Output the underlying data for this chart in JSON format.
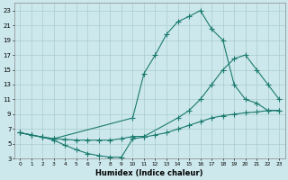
{
  "xlabel": "Humidex (Indice chaleur)",
  "bg_color": "#cce8ec",
  "grid_color": "#aacccc",
  "line_color": "#1a7a6e",
  "xlim": [
    -0.5,
    23.5
  ],
  "ylim": [
    3,
    24
  ],
  "xticks": [
    0,
    1,
    2,
    3,
    4,
    5,
    6,
    7,
    8,
    9,
    10,
    11,
    12,
    13,
    14,
    15,
    16,
    17,
    18,
    19,
    20,
    21,
    22,
    23
  ],
  "yticks": [
    3,
    5,
    7,
    9,
    11,
    13,
    15,
    17,
    19,
    21,
    23
  ],
  "line1_x": [
    0,
    1,
    2,
    3,
    10,
    11,
    12,
    13,
    14,
    15,
    16,
    17,
    18,
    19,
    20,
    21,
    22,
    23
  ],
  "line1_y": [
    6.5,
    6.2,
    5.9,
    5.7,
    8.5,
    14.5,
    17.0,
    19.8,
    21.5,
    22.2,
    23.0,
    20.5,
    19.0,
    13.0,
    11.0,
    10.5,
    9.5,
    9.5
  ],
  "line2_x": [
    0,
    1,
    2,
    3,
    4,
    5,
    6,
    7,
    8,
    9,
    10,
    11,
    14,
    15,
    16,
    17,
    18,
    19,
    20,
    21,
    22,
    23
  ],
  "line2_y": [
    6.5,
    6.2,
    5.9,
    5.7,
    5.6,
    5.5,
    5.5,
    5.5,
    5.5,
    5.7,
    6.0,
    6.0,
    8.5,
    9.5,
    11.0,
    13.0,
    15.0,
    16.5,
    17.0,
    15.0,
    13.0,
    11.0
  ],
  "line3_x": [
    0,
    1,
    2,
    3,
    4,
    5,
    6,
    7,
    8,
    9,
    10,
    11,
    12,
    13,
    14,
    15,
    16,
    17,
    18,
    19,
    20,
    21,
    22,
    23
  ],
  "line3_y": [
    6.5,
    6.2,
    5.9,
    5.5,
    4.8,
    4.2,
    3.7,
    3.4,
    3.2,
    3.2,
    5.7,
    5.9,
    6.2,
    6.5,
    7.0,
    7.5,
    8.0,
    8.5,
    8.8,
    9.0,
    9.2,
    9.3,
    9.5,
    9.5
  ]
}
